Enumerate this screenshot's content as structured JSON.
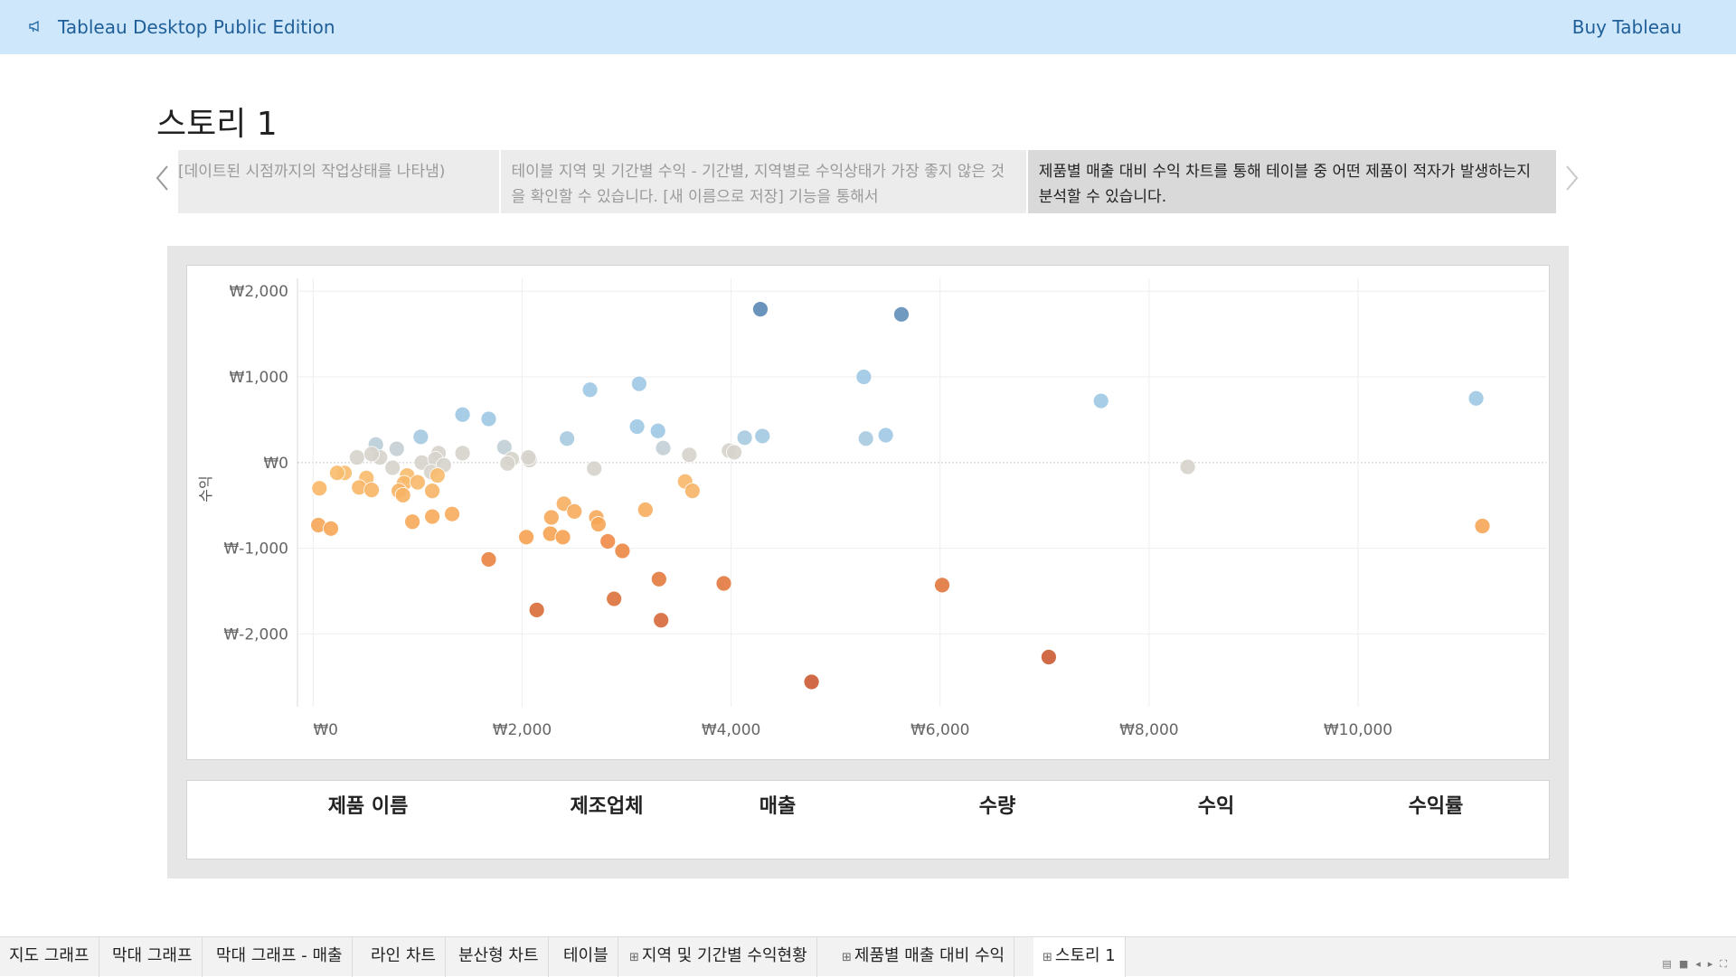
{
  "topbar": {
    "title": "Tableau Desktop Public Edition",
    "buy_label": "Buy Tableau",
    "icon": "megaphone-icon"
  },
  "story": {
    "title": "스토리 1",
    "points": [
      "[데이트된 시점까지의 작업상태를 나타냄)",
      "테이블 지역 및 기간별 수익 - 기간별, 지역별로 수익상태가 가장 좋지 않은 것을 확인할 수 있습니다. [새 이름으로 저장] 기능을 통해서",
      "제품별 매출 대비 수익 차트를 통해 테이블 중 어떤 제품이 적자가 발생하는지 분석할 수 있습니다."
    ]
  },
  "chart_data": {
    "type": "scatter",
    "xlabel": "",
    "ylabel": "수익",
    "xlim": [
      -150,
      11800
    ],
    "ylim": [
      -2850,
      2150
    ],
    "x_ticks": [
      0,
      2000,
      4000,
      6000,
      8000,
      10000
    ],
    "x_tick_labels": [
      "₩0",
      "₩2,000",
      "₩4,000",
      "₩6,000",
      "₩8,000",
      "₩10,000"
    ],
    "y_ticks": [
      2000,
      1000,
      0,
      -1000,
      -2000
    ],
    "y_tick_labels": [
      "₩2,000",
      "₩1,000",
      "₩0",
      "₩-1,000",
      "₩-2,000"
    ],
    "grid": true,
    "color_scale": {
      "positive": "#5a87b5",
      "neutral": "#d6d3cc",
      "negative": "#cc5a32"
    },
    "points": [
      {
        "x": 4280,
        "y": 1790
      },
      {
        "x": 5630,
        "y": 1730
      },
      {
        "x": 5270,
        "y": 1000
      },
      {
        "x": 7540,
        "y": 720
      },
      {
        "x": 11130,
        "y": 750
      },
      {
        "x": 2650,
        "y": 850
      },
      {
        "x": 3120,
        "y": 920
      },
      {
        "x": 1430,
        "y": 560
      },
      {
        "x": 1680,
        "y": 510
      },
      {
        "x": 1030,
        "y": 300
      },
      {
        "x": 600,
        "y": 210
      },
      {
        "x": 800,
        "y": 160
      },
      {
        "x": 1200,
        "y": 110
      },
      {
        "x": 1430,
        "y": 110
      },
      {
        "x": 1830,
        "y": 180
      },
      {
        "x": 2430,
        "y": 280
      },
      {
        "x": 3100,
        "y": 420
      },
      {
        "x": 3300,
        "y": 370
      },
      {
        "x": 3350,
        "y": 170
      },
      {
        "x": 3600,
        "y": 90
      },
      {
        "x": 4130,
        "y": 290
      },
      {
        "x": 4300,
        "y": 310
      },
      {
        "x": 5290,
        "y": 280
      },
      {
        "x": 5480,
        "y": 320
      },
      {
        "x": 3980,
        "y": 140
      },
      {
        "x": 4030,
        "y": 120
      },
      {
        "x": 420,
        "y": 60
      },
      {
        "x": 640,
        "y": 60
      },
      {
        "x": 560,
        "y": 100
      },
      {
        "x": 1040,
        "y": 0
      },
      {
        "x": 1170,
        "y": 40
      },
      {
        "x": 1250,
        "y": -30
      },
      {
        "x": 1900,
        "y": 40
      },
      {
        "x": 2070,
        "y": 30
      },
      {
        "x": 2060,
        "y": 60
      },
      {
        "x": 1860,
        "y": -10
      },
      {
        "x": 2690,
        "y": -70
      },
      {
        "x": 8370,
        "y": -50
      },
      {
        "x": 300,
        "y": -120
      },
      {
        "x": 230,
        "y": -120
      },
      {
        "x": 760,
        "y": -60
      },
      {
        "x": 1130,
        "y": -110
      },
      {
        "x": 900,
        "y": -150
      },
      {
        "x": 1190,
        "y": -150
      },
      {
        "x": 510,
        "y": -180
      },
      {
        "x": 60,
        "y": -300
      },
      {
        "x": 440,
        "y": -290
      },
      {
        "x": 560,
        "y": -320
      },
      {
        "x": 870,
        "y": -240
      },
      {
        "x": 820,
        "y": -330
      },
      {
        "x": 860,
        "y": -380
      },
      {
        "x": 1000,
        "y": -230
      },
      {
        "x": 1140,
        "y": -330
      },
      {
        "x": 3560,
        "y": -220
      },
      {
        "x": 3630,
        "y": -330
      },
      {
        "x": 50,
        "y": -730
      },
      {
        "x": 170,
        "y": -770
      },
      {
        "x": 950,
        "y": -690
      },
      {
        "x": 1140,
        "y": -630
      },
      {
        "x": 1330,
        "y": -600
      },
      {
        "x": 2400,
        "y": -480
      },
      {
        "x": 2500,
        "y": -570
      },
      {
        "x": 2280,
        "y": -640
      },
      {
        "x": 2710,
        "y": -640
      },
      {
        "x": 2730,
        "y": -720
      },
      {
        "x": 3180,
        "y": -550
      },
      {
        "x": 11190,
        "y": -740
      },
      {
        "x": 1680,
        "y": -1130
      },
      {
        "x": 2040,
        "y": -870
      },
      {
        "x": 2270,
        "y": -830
      },
      {
        "x": 2390,
        "y": -870
      },
      {
        "x": 2820,
        "y": -920
      },
      {
        "x": 2960,
        "y": -1030
      },
      {
        "x": 3310,
        "y": -1360
      },
      {
        "x": 3930,
        "y": -1410
      },
      {
        "x": 6020,
        "y": -1430
      },
      {
        "x": 2140,
        "y": -1720
      },
      {
        "x": 2880,
        "y": -1590
      },
      {
        "x": 3330,
        "y": -1840
      },
      {
        "x": 4770,
        "y": -2560
      },
      {
        "x": 7040,
        "y": -2270
      }
    ]
  },
  "table": {
    "headers": [
      "제품 이름",
      "제조업체",
      "매출",
      "수량",
      "수익",
      "수익률"
    ]
  },
  "tabs": [
    {
      "label": "지도 그래프",
      "icon": ""
    },
    {
      "label": "막대 그래프",
      "icon": ""
    },
    {
      "label": "막대 그래프 - 매출",
      "icon": ""
    },
    {
      "label": "라인 차트",
      "icon": ""
    },
    {
      "label": "분산형 차트",
      "icon": ""
    },
    {
      "label": "테이블",
      "icon": ""
    },
    {
      "label": "지역 및 기간별 수익현황",
      "icon": "dashboard-icon"
    },
    {
      "label": "제품별 매출 대비 수익",
      "icon": "dashboard-icon"
    },
    {
      "label": "스토리 1",
      "icon": "story-icon"
    }
  ]
}
